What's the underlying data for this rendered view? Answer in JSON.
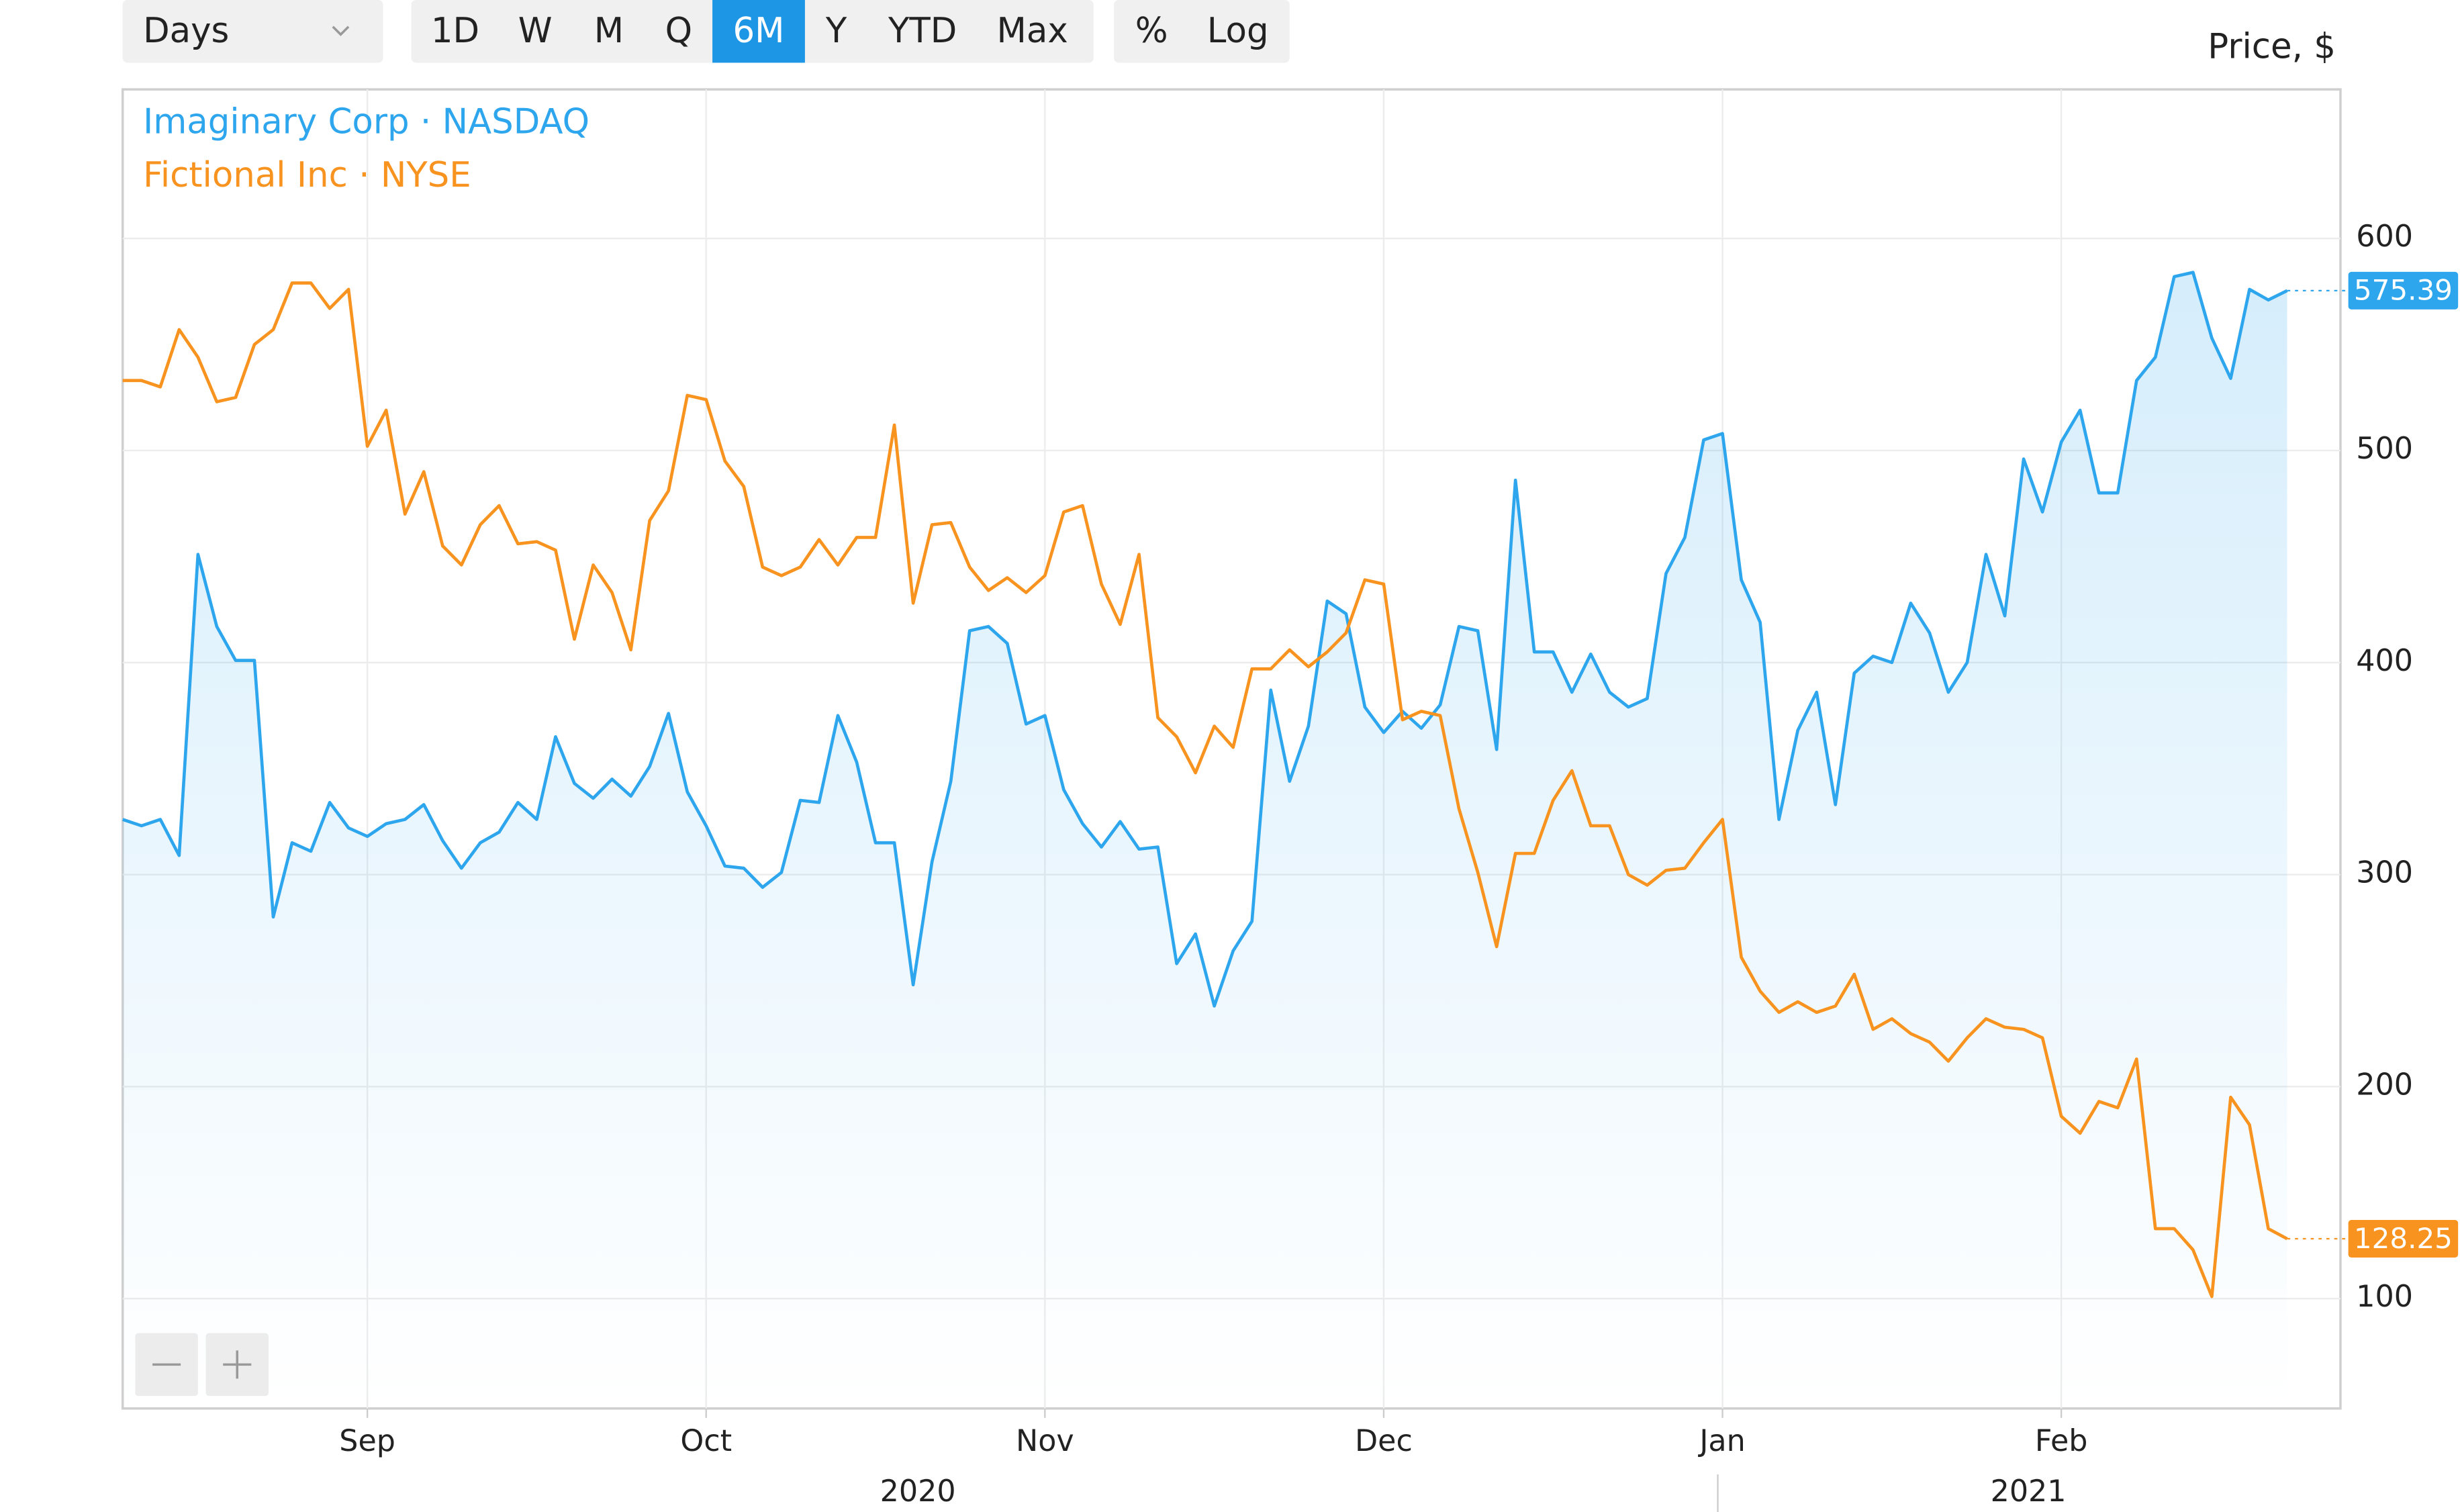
{
  "toolbar": {
    "interval": "Days",
    "ranges": [
      "1D",
      "W",
      "M",
      "Q",
      "6M",
      "Y",
      "YTD",
      "Max"
    ],
    "active": "6M",
    "options": [
      "%",
      "Log"
    ]
  },
  "chart_data": {
    "type": "line",
    "axis_label": "Price, $",
    "categories": [
      null,
      null,
      null,
      null,
      null,
      null,
      null,
      null,
      null,
      null,
      null,
      null,
      null,
      "Sep",
      null,
      null,
      null,
      null,
      null,
      null,
      null,
      null,
      null,
      null,
      null,
      null,
      null,
      null,
      null,
      null,
      null,
      "Oct",
      null,
      null,
      null,
      null,
      null,
      null,
      null,
      null,
      null,
      null,
      null,
      null,
      null,
      null,
      null,
      null,
      null,
      "Nov",
      null,
      null,
      null,
      null,
      null,
      null,
      null,
      null,
      null,
      null,
      null,
      null,
      null,
      null,
      null,
      null,
      null,
      "Dec",
      null,
      null,
      null,
      null,
      null,
      null,
      null,
      null,
      null,
      null,
      null,
      null,
      null,
      null,
      null,
      null,
      null,
      "Jan",
      null,
      null,
      null,
      null,
      null,
      null,
      null,
      null,
      null,
      null,
      null,
      null,
      null,
      null,
      null,
      null,
      null,
      "Feb",
      null,
      null,
      null,
      null,
      null,
      null,
      null,
      null,
      null,
      null,
      null,
      null
    ],
    "year_labels": [
      "2020",
      "2021"
    ],
    "series": [
      {
        "name": "Imaginary Corp · NASDAQ",
        "color": "#2ea6ee",
        "area": true,
        "values": [
          326,
          323,
          326,
          309,
          451,
          417,
          401,
          401,
          280,
          315,
          311,
          334,
          322,
          318,
          324,
          326,
          333,
          316,
          303,
          315,
          320,
          334,
          326,
          365,
          343,
          336,
          345,
          337,
          351,
          376,
          339,
          323,
          304,
          303,
          294,
          301,
          335,
          334,
          375,
          353,
          315,
          315,
          248,
          306,
          344,
          415,
          417,
          409,
          371,
          375,
          340,
          324,
          313,
          325,
          312,
          313,
          258,
          272,
          238,
          264,
          278,
          387,
          344,
          370,
          429,
          423,
          379,
          367,
          377,
          369,
          380,
          417,
          415,
          359,
          486,
          405,
          405,
          386,
          404,
          386,
          379,
          383,
          442,
          459,
          505,
          508,
          439,
          419,
          326,
          368,
          386,
          333,
          395,
          403,
          400,
          428,
          414,
          386,
          400,
          451,
          422,
          496,
          471,
          504,
          519,
          480,
          480,
          533,
          544,
          582,
          584,
          553,
          534,
          576,
          571,
          575.39
        ]
      },
      {
        "name": "Fictional Inc · NYSE",
        "color": "#f7931e",
        "area": false,
        "values": [
          533,
          533,
          530,
          557,
          544,
          523,
          525,
          550,
          557,
          579,
          579,
          567,
          576,
          502,
          519,
          470,
          490,
          455,
          446,
          465,
          474,
          456,
          457,
          453,
          411,
          446,
          433,
          406,
          467,
          481,
          526,
          524,
          495,
          483,
          445,
          441,
          445,
          458,
          446,
          459,
          459,
          512,
          428,
          465,
          466,
          445,
          434,
          440,
          433,
          441,
          471,
          474,
          437,
          418,
          451,
          374,
          365,
          348,
          370,
          360,
          397,
          397,
          406,
          398,
          405,
          414,
          439,
          437,
          373,
          377,
          375,
          331,
          301,
          266,
          310,
          310,
          335,
          349,
          323,
          323,
          300,
          295,
          302,
          303,
          315,
          326,
          261,
          245,
          235,
          240,
          235,
          238,
          253,
          227,
          232,
          225,
          221,
          212,
          223,
          232,
          228,
          227,
          223,
          186,
          178,
          193,
          190,
          213,
          133,
          133,
          123,
          101,
          195,
          182,
          133,
          128.25
        ]
      }
    ],
    "ylim": [
      48.2,
      670.3
    ],
    "yticks": [
      100,
      200,
      300,
      400,
      500,
      600
    ],
    "grid": true,
    "log_scale": false,
    "legend": "top-left"
  }
}
